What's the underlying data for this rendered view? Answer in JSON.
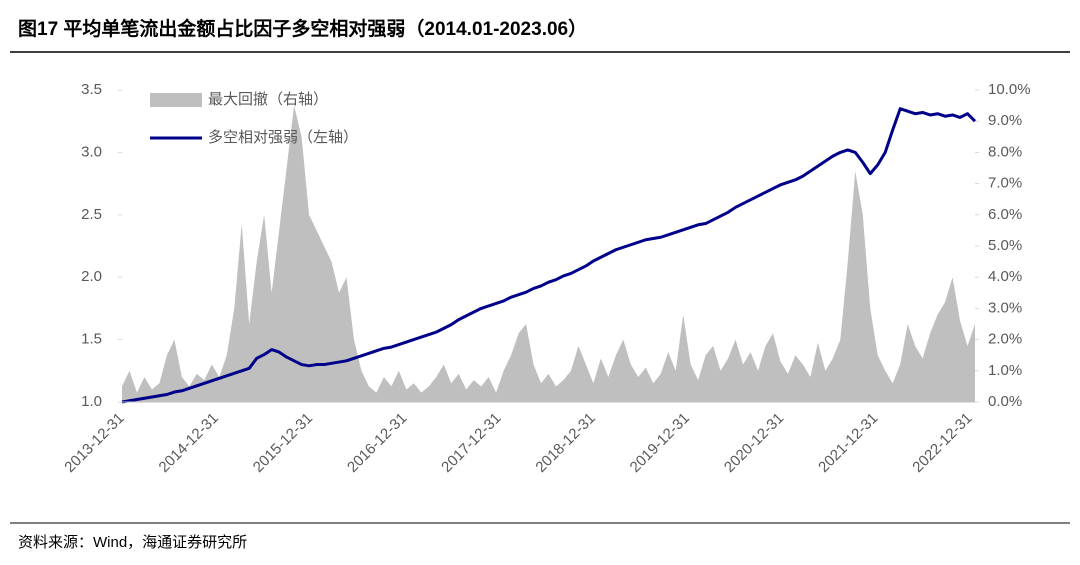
{
  "chart_data": {
    "type": "area-line",
    "title": "图17 平均单笔流出金额占比因子多空相对强弱（2014.01-2023.06）",
    "source": "资料来源：Wind，海通证券研究所",
    "x": [
      "2013-12",
      "2014-01",
      "2014-02",
      "2014-03",
      "2014-04",
      "2014-05",
      "2014-06",
      "2014-07",
      "2014-08",
      "2014-09",
      "2014-10",
      "2014-11",
      "2014-12",
      "2015-01",
      "2015-02",
      "2015-03",
      "2015-04",
      "2015-05",
      "2015-06",
      "2015-07",
      "2015-08",
      "2015-09",
      "2015-10",
      "2015-11",
      "2015-12",
      "2016-01",
      "2016-02",
      "2016-03",
      "2016-04",
      "2016-05",
      "2016-06",
      "2016-07",
      "2016-08",
      "2016-09",
      "2016-10",
      "2016-11",
      "2016-12",
      "2017-01",
      "2017-02",
      "2017-03",
      "2017-04",
      "2017-05",
      "2017-06",
      "2017-07",
      "2017-08",
      "2017-09",
      "2017-10",
      "2017-11",
      "2017-12",
      "2018-01",
      "2018-02",
      "2018-03",
      "2018-04",
      "2018-05",
      "2018-06",
      "2018-07",
      "2018-08",
      "2018-09",
      "2018-10",
      "2018-11",
      "2018-12",
      "2019-01",
      "2019-02",
      "2019-03",
      "2019-04",
      "2019-05",
      "2019-06",
      "2019-07",
      "2019-08",
      "2019-09",
      "2019-10",
      "2019-11",
      "2019-12",
      "2020-01",
      "2020-02",
      "2020-03",
      "2020-04",
      "2020-05",
      "2020-06",
      "2020-07",
      "2020-08",
      "2020-09",
      "2020-10",
      "2020-11",
      "2020-12",
      "2021-01",
      "2021-02",
      "2021-03",
      "2021-04",
      "2021-05",
      "2021-06",
      "2021-07",
      "2021-08",
      "2021-09",
      "2021-10",
      "2021-11",
      "2021-12",
      "2022-01",
      "2022-02",
      "2022-03",
      "2022-04",
      "2022-05",
      "2022-06",
      "2022-07",
      "2022-08",
      "2022-09",
      "2022-10",
      "2022-11",
      "2022-12",
      "2023-01",
      "2023-02",
      "2023-03",
      "2023-04",
      "2023-05",
      "2023-06"
    ],
    "xticks": [
      "2013-12-31",
      "2014-12-31",
      "2015-12-31",
      "2016-12-31",
      "2017-12-31",
      "2018-12-31",
      "2019-12-31",
      "2020-12-31",
      "2021-12-31",
      "2022-12-31"
    ],
    "series": [
      {
        "name": "最大回撤（右轴）",
        "color": "#bfbfbf",
        "kind": "area",
        "axis": "y2",
        "values": [
          0.5,
          1.0,
          0.3,
          0.8,
          0.4,
          0.6,
          1.5,
          2.0,
          0.8,
          0.5,
          0.9,
          0.7,
          1.2,
          0.8,
          1.5,
          3.0,
          5.7,
          2.5,
          4.5,
          6.0,
          3.5,
          5.5,
          7.5,
          9.5,
          8.5,
          6.0,
          5.5,
          5.0,
          4.5,
          3.5,
          4.0,
          2.0,
          1.0,
          0.5,
          0.3,
          0.8,
          0.5,
          1.0,
          0.4,
          0.6,
          0.3,
          0.5,
          0.8,
          1.2,
          0.6,
          0.9,
          0.4,
          0.7,
          0.5,
          0.8,
          0.3,
          1.0,
          1.5,
          2.2,
          2.5,
          1.2,
          0.6,
          0.9,
          0.5,
          0.7,
          1.0,
          1.8,
          1.2,
          0.6,
          1.4,
          0.8,
          1.5,
          2.0,
          1.2,
          0.8,
          1.1,
          0.6,
          0.9,
          1.6,
          1.0,
          2.8,
          1.2,
          0.7,
          1.5,
          1.8,
          1.0,
          1.4,
          2.0,
          1.2,
          1.6,
          1.0,
          1.8,
          2.2,
          1.3,
          0.9,
          1.5,
          1.2,
          0.8,
          1.9,
          1.0,
          1.4,
          2.0,
          4.5,
          7.4,
          6.0,
          3.0,
          1.5,
          1.0,
          0.6,
          1.2,
          2.5,
          1.8,
          1.4,
          2.2,
          2.8,
          3.2,
          4.0,
          2.6,
          1.8,
          2.5
        ]
      },
      {
        "name": "多空相对强弱（左轴）",
        "color": "#00008b",
        "kind": "line",
        "axis": "y",
        "values": [
          1.0,
          1.01,
          1.02,
          1.03,
          1.04,
          1.05,
          1.06,
          1.08,
          1.09,
          1.11,
          1.13,
          1.15,
          1.17,
          1.19,
          1.21,
          1.23,
          1.25,
          1.27,
          1.35,
          1.38,
          1.42,
          1.4,
          1.36,
          1.33,
          1.3,
          1.29,
          1.3,
          1.3,
          1.31,
          1.32,
          1.33,
          1.35,
          1.37,
          1.39,
          1.41,
          1.43,
          1.44,
          1.46,
          1.48,
          1.5,
          1.52,
          1.54,
          1.56,
          1.59,
          1.62,
          1.66,
          1.69,
          1.72,
          1.75,
          1.77,
          1.79,
          1.81,
          1.84,
          1.86,
          1.88,
          1.91,
          1.93,
          1.96,
          1.98,
          2.01,
          2.03,
          2.06,
          2.09,
          2.13,
          2.16,
          2.19,
          2.22,
          2.24,
          2.26,
          2.28,
          2.3,
          2.31,
          2.32,
          2.34,
          2.36,
          2.38,
          2.4,
          2.42,
          2.43,
          2.46,
          2.49,
          2.52,
          2.56,
          2.59,
          2.62,
          2.65,
          2.68,
          2.71,
          2.74,
          2.76,
          2.78,
          2.81,
          2.85,
          2.89,
          2.93,
          2.97,
          3.0,
          3.02,
          3.0,
          2.92,
          2.83,
          2.9,
          3.0,
          3.18,
          3.35,
          3.33,
          3.31,
          3.32,
          3.3,
          3.31,
          3.29,
          3.3,
          3.28,
          3.31,
          3.25
        ]
      }
    ],
    "ylim": [
      1.0,
      3.5
    ],
    "yticks": [
      {
        "value": 1.0,
        "label": "1.0"
      },
      1.5,
      {
        "value": 2.0,
        "label": "2.0"
      },
      2.5,
      {
        "value": 3.0,
        "label": "3.0"
      },
      3.5
    ],
    "y2lim": [
      0,
      10
    ],
    "y2ticks": [
      {
        "value": 0,
        "label": "0.0%"
      },
      {
        "value": 1,
        "label": "1.0%"
      },
      {
        "value": 2,
        "label": "2.0%"
      },
      {
        "value": 3,
        "label": "3.0%"
      },
      {
        "value": 4,
        "label": "4.0%"
      },
      {
        "value": 5,
        "label": "5.0%"
      },
      {
        "value": 6,
        "label": "6.0%"
      },
      {
        "value": 7,
        "label": "7.0%"
      },
      {
        "value": 8,
        "label": "8.0%"
      },
      {
        "value": 9,
        "label": "9.0%"
      },
      {
        "value": 10,
        "label": "10.0%"
      }
    ],
    "grid": false,
    "legend": "upper left"
  }
}
